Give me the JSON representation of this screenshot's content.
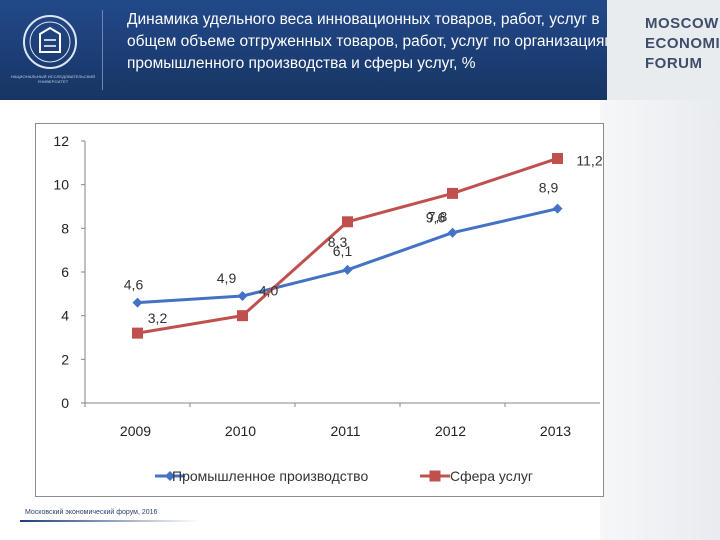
{
  "header": {
    "title": "Динамика удельного веса инновационных товаров, работ, услуг в общем объеме отгруженных товаров, работ, услуг по организациям промышленного производства и сферы услуг, %",
    "logo_caption": "НАЦИОНАЛЬНЫЙ ИССЛЕДОВАТЕЛЬСКИЙ УНИВЕРСИТЕТ",
    "forum_logo": [
      "MOSCOW",
      "ECONOMIC",
      "FORUM"
    ]
  },
  "footer": {
    "text": "Московский экономический форум, 2016"
  },
  "colors": {
    "header_bg": "#1c3f7a",
    "series_industry": "#4472c4",
    "series_services": "#c0504d"
  },
  "chart_data": {
    "type": "line",
    "title": "",
    "xlabel": "",
    "ylabel": "",
    "categories": [
      "2009",
      "2010",
      "2011",
      "2012",
      "2013"
    ],
    "ylim": [
      0,
      12
    ],
    "yticks": [
      0,
      2,
      4,
      6,
      8,
      10,
      12
    ],
    "ytick_labels": [
      "0",
      "2",
      "4",
      "6",
      "8",
      "10",
      "12"
    ],
    "grid": false,
    "legend": "bottom",
    "series": [
      {
        "name": "Промышленное производство",
        "values": [
          4.6,
          4.9,
          6.1,
          7.8,
          8.9
        ],
        "labels": [
          "4,6",
          "4,9",
          "6,1",
          "7,8",
          "8,9"
        ],
        "color": "#4472c4",
        "marker": "diamond"
      },
      {
        "name": "Сфера услуг",
        "values": [
          3.2,
          4.0,
          8.3,
          9.6,
          11.2
        ],
        "labels": [
          "3,2",
          "4,0",
          "8,3",
          "9,6",
          "11,2"
        ],
        "color": "#c0504d",
        "marker": "square"
      }
    ]
  }
}
